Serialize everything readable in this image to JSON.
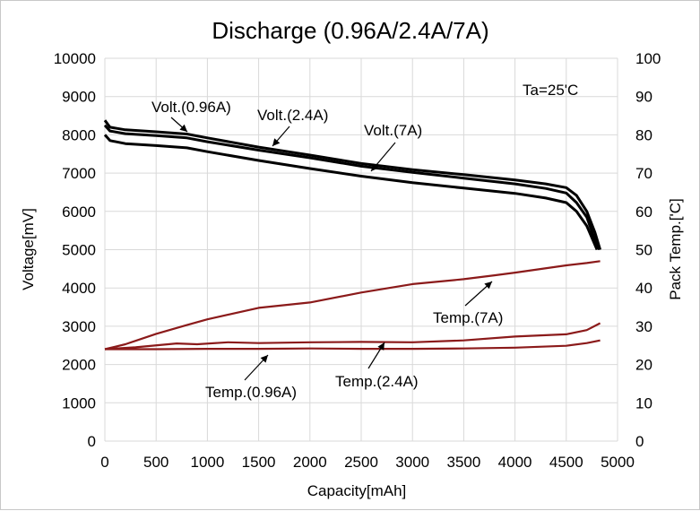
{
  "chart_data": {
    "type": "line",
    "title": "Discharge (0.96A/2.4A/7A)",
    "xlabel": "Capacity[mAh]",
    "ylabel": "Voltage[mV]",
    "y2label": "Pack Temp.['C]",
    "xlim": [
      0,
      5000
    ],
    "ylim": [
      0,
      10000
    ],
    "y2lim": [
      0,
      100
    ],
    "xticks": [
      "0",
      "500",
      "1000",
      "1500",
      "2000",
      "2500",
      "3000",
      "3500",
      "4000",
      "4500",
      "5000"
    ],
    "yticks": [
      "0",
      "1000",
      "2000",
      "3000",
      "4000",
      "5000",
      "6000",
      "7000",
      "8000",
      "9000",
      "10000"
    ],
    "y2ticks": [
      "0",
      "10",
      "20",
      "30",
      "40",
      "50",
      "60",
      "70",
      "80",
      "90",
      "100"
    ],
    "grid": true,
    "annotation_note": "Ta=25'C",
    "colors": {
      "voltage": "#000000",
      "temperature": "#8b1a1a",
      "grid": "#d9d9d9"
    },
    "series": [
      {
        "name": "Volt.(0.96A)",
        "axis": "left",
        "x": [
          0,
          50,
          200,
          500,
          800,
          1000,
          1500,
          2000,
          2500,
          3000,
          3500,
          4000,
          4300,
          4500,
          4600,
          4700,
          4780,
          4830
        ],
        "y": [
          8380,
          8200,
          8130,
          8080,
          8020,
          7920,
          7680,
          7470,
          7250,
          7090,
          6960,
          6820,
          6720,
          6620,
          6420,
          6000,
          5450,
          5000
        ]
      },
      {
        "name": "Volt.(2.4A)",
        "axis": "left",
        "x": [
          0,
          50,
          200,
          500,
          800,
          1000,
          1500,
          2000,
          2500,
          3000,
          3500,
          4000,
          4300,
          4500,
          4600,
          4700,
          4760,
          4820
        ],
        "y": [
          8250,
          8100,
          8030,
          7980,
          7920,
          7820,
          7600,
          7400,
          7180,
          7020,
          6870,
          6720,
          6600,
          6480,
          6230,
          5850,
          5400,
          5000
        ]
      },
      {
        "name": "Volt.(7A)",
        "axis": "left",
        "x": [
          0,
          50,
          200,
          500,
          800,
          1000,
          1500,
          2000,
          2500,
          3000,
          3500,
          4000,
          4300,
          4500,
          4600,
          4700,
          4760,
          4800
        ],
        "y": [
          8000,
          7850,
          7770,
          7720,
          7660,
          7560,
          7330,
          7120,
          6920,
          6750,
          6610,
          6470,
          6350,
          6230,
          6000,
          5620,
          5250,
          5000
        ]
      },
      {
        "name": "Temp.(0.96A)",
        "axis": "right",
        "x": [
          0,
          500,
          1000,
          1500,
          2000,
          2500,
          3000,
          3500,
          4000,
          4500,
          4700,
          4830
        ],
        "y": [
          24,
          24,
          24.1,
          24.1,
          24.2,
          24.1,
          24.1,
          24.2,
          24.4,
          24.9,
          25.6,
          26.3
        ]
      },
      {
        "name": "Temp.(2.4A)",
        "axis": "right",
        "x": [
          0,
          300,
          700,
          900,
          1200,
          1500,
          2000,
          2500,
          3000,
          3500,
          4000,
          4500,
          4700,
          4830
        ],
        "y": [
          24,
          24.5,
          25.5,
          25.3,
          25.8,
          25.6,
          25.8,
          25.9,
          25.8,
          26.3,
          27.3,
          27.9,
          29,
          30.8
        ]
      },
      {
        "name": "Temp.(7A)",
        "axis": "right",
        "x": [
          0,
          200,
          500,
          800,
          1000,
          1500,
          2000,
          2500,
          3000,
          3500,
          3800,
          4000,
          4500,
          4700,
          4830
        ],
        "y": [
          24,
          25.3,
          28,
          30.3,
          31.8,
          34.8,
          36.2,
          38.8,
          41,
          42.3,
          43.3,
          44,
          45.9,
          46.5,
          47
        ]
      }
    ]
  }
}
